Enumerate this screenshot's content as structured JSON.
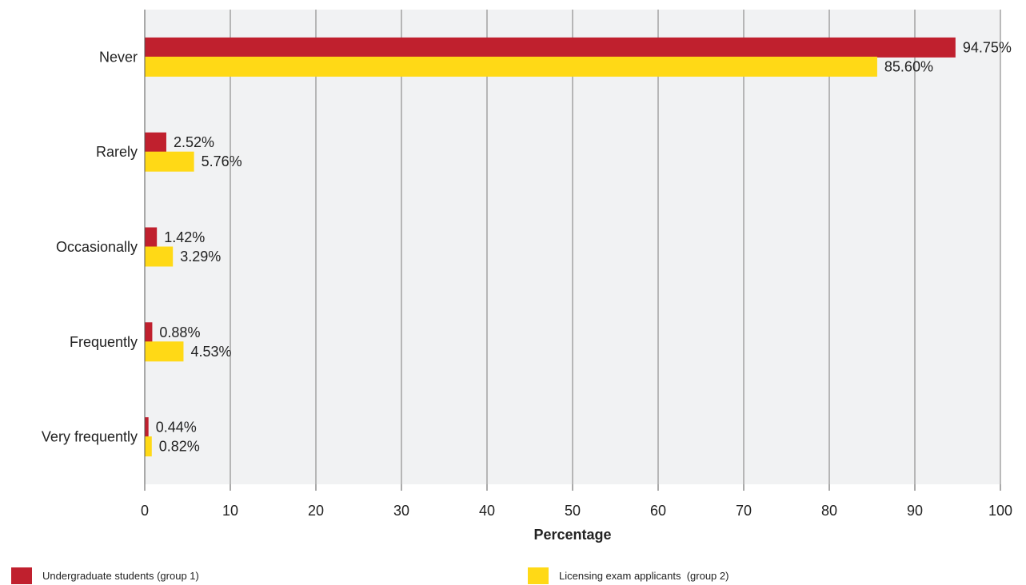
{
  "chart_data": {
    "type": "bar",
    "orientation": "horizontal",
    "categories": [
      "Never",
      "Rarely",
      "Occasionally",
      "Frequently",
      "Very frequently"
    ],
    "series": [
      {
        "name": "Undergraduate students (group 1)",
        "color": "#c0202e",
        "values": [
          94.75,
          2.52,
          1.42,
          0.88,
          0.44
        ],
        "labels": [
          "94.75%",
          "2.52%",
          "1.42%",
          "0.88%",
          "0.44%"
        ]
      },
      {
        "name": "Licensing exam applicants  (group 2)",
        "color": "#ffd916",
        "values": [
          85.6,
          5.76,
          3.29,
          4.53,
          0.82
        ],
        "labels": [
          "85.60%",
          "5.76%",
          "3.29%",
          "4.53%",
          "0.82%"
        ]
      }
    ],
    "xlabel": "Percentage",
    "ylabel": "",
    "xlim": [
      0,
      100
    ],
    "xticks": [
      "0",
      "10",
      "20",
      "30",
      "40",
      "50",
      "60",
      "70",
      "80",
      "90",
      "100"
    ],
    "grid": true,
    "plot_background": "#f1f2f3",
    "legend_position": "bottom"
  }
}
